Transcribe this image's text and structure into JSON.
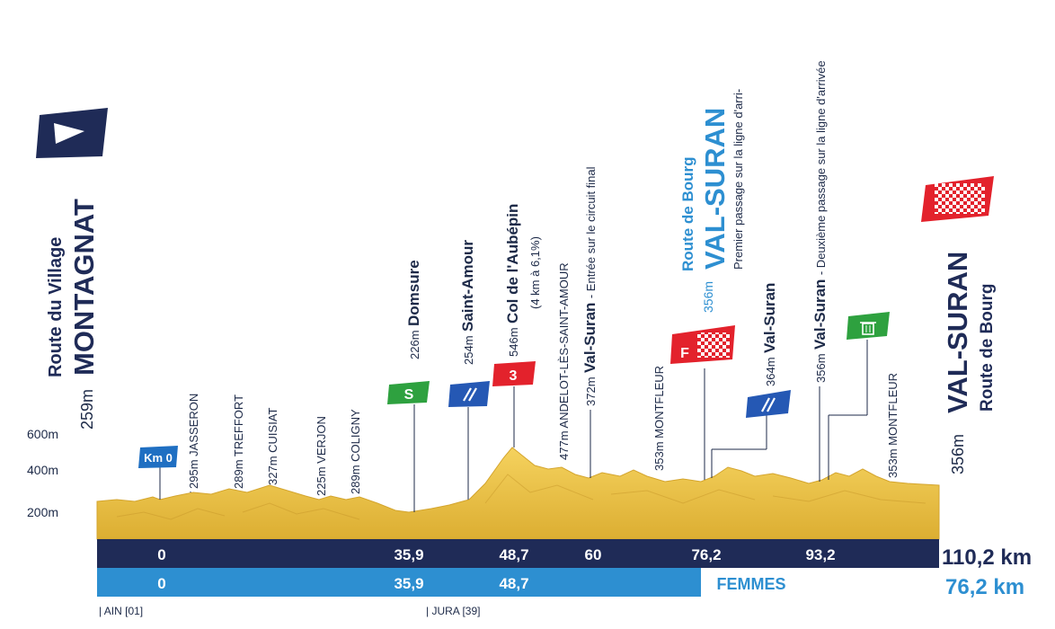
{
  "start": {
    "altitude": "259m",
    "town": "MONTAGNAT",
    "sub": "Route du Village"
  },
  "finish": {
    "altitude": "356m",
    "town": "VAL-SURAN",
    "sub": "Route de Bourg"
  },
  "y_axis": [
    "600m",
    "400m",
    "200m"
  ],
  "km0": "Km 0",
  "waypoints": [
    {
      "alt": "295m",
      "name": "JASSERON"
    },
    {
      "alt": "289m",
      "name": "TREFFORT"
    },
    {
      "alt": "327m",
      "name": "CUISIAT"
    },
    {
      "alt": "225m",
      "name": "VERJON"
    },
    {
      "alt": "289m",
      "name": "COLIGNY"
    },
    {
      "alt": "226m",
      "name": "Domsure"
    },
    {
      "alt": "254m",
      "name": "Saint-Amour"
    },
    {
      "alt": "546m",
      "name": "Col de l'Aubépin",
      "note": "(4 km à 6,1%)"
    },
    {
      "alt": "477m",
      "name": "ANDELOT-LÈS-SAINT-AMOUR"
    },
    {
      "alt": "372m",
      "name": "Val-Suran",
      "note": "- Entrée sur le circuit final"
    },
    {
      "alt": "353m",
      "name": "MONTFLEUR"
    },
    {
      "alt": "356m",
      "name": "VAL-SURAN",
      "sub": "Route de Bourg",
      "note": "Premier passage sur la ligne d'arri-"
    },
    {
      "alt": "364m",
      "name": "Val-Suran"
    },
    {
      "alt": "356m",
      "name": "Val-Suran",
      "note": "- Deuxième passage sur la ligne d'arrivée"
    },
    {
      "alt": "353m",
      "name": "MONTFLEUR"
    }
  ],
  "badges": {
    "sprint": "S",
    "climb": "3",
    "women_finish": "F"
  },
  "distances_men": [
    "0",
    "35,9",
    "48,7",
    "60",
    "76,2",
    "93,2"
  ],
  "total_men": "110,2 km",
  "distances_women": [
    "0",
    "35,9",
    "48,7"
  ],
  "women_label": "FEMMES",
  "total_women": "76,2 km",
  "borders": [
    "| AIN [01]",
    "| JURA [39]"
  ],
  "colors": {
    "navy": "#1f2b57",
    "blue": "#2d8fd1",
    "profile": "#f0c84a",
    "sprint": "#2ea13f",
    "climb": "#e3222c",
    "dark_text": "#1d2a48"
  }
}
